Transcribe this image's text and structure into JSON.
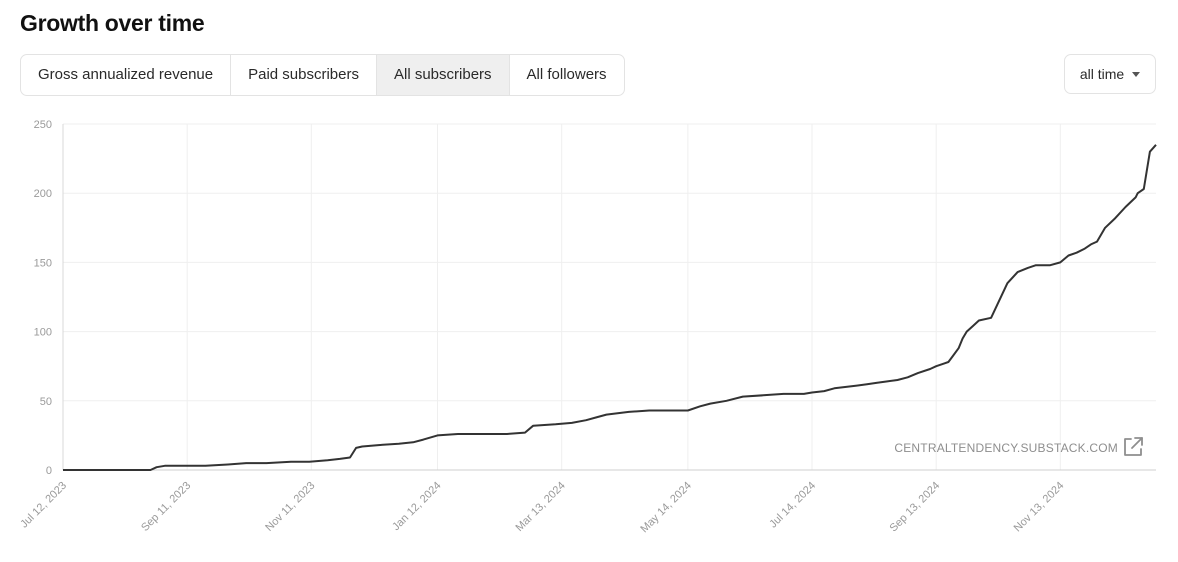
{
  "header": {
    "title": "Growth over time"
  },
  "tabs": [
    {
      "label": "Gross annualized revenue",
      "active": false
    },
    {
      "label": "Paid subscribers",
      "active": false
    },
    {
      "label": "All subscribers",
      "active": true
    },
    {
      "label": "All followers",
      "active": false
    }
  ],
  "range_select": {
    "value": "all time",
    "icon": "caret-down-icon"
  },
  "watermark": {
    "text": "CENTRALTENDENCY.SUBSTACK.COM",
    "icon": "external-link-icon"
  },
  "chart_data": {
    "type": "line",
    "title": "",
    "xlabel": "",
    "ylabel": "",
    "ylim": [
      0,
      250
    ],
    "y_ticks": [
      0,
      50,
      100,
      150,
      200,
      250
    ],
    "x_ticks": [
      "Jul 12, 2023",
      "Sep 11, 2023",
      "Nov 11, 2023",
      "Jan 12, 2024",
      "Mar 13, 2024",
      "May 14, 2024",
      "Jul 14, 2024",
      "Sep 13, 2024",
      "Nov 13, 2024"
    ],
    "grid": true,
    "line_color": "#333333",
    "series": [
      {
        "x": [
          "2023-07-12",
          "2023-08-24",
          "2023-08-27",
          "2023-08-31",
          "2023-09-10",
          "2023-09-20",
          "2023-10-01",
          "2023-10-10",
          "2023-10-20",
          "2023-11-01",
          "2023-11-10",
          "2023-11-19",
          "2023-11-25",
          "2023-11-30",
          "2023-12-03",
          "2023-12-06",
          "2023-12-14",
          "2023-12-24",
          "2023-12-31",
          "2024-01-05",
          "2024-01-12",
          "2024-01-22",
          "2024-02-15",
          "2024-02-24",
          "2024-02-28",
          "2024-03-10",
          "2024-03-18",
          "2024-03-25",
          "2024-03-30",
          "2024-04-04",
          "2024-04-15",
          "2024-04-25",
          "2024-05-05",
          "2024-05-14",
          "2024-05-20",
          "2024-05-25",
          "2024-06-02",
          "2024-06-10",
          "2024-06-20",
          "2024-06-30",
          "2024-07-10",
          "2024-07-14",
          "2024-07-20",
          "2024-07-25",
          "2024-08-05",
          "2024-08-10",
          "2024-08-15",
          "2024-08-20",
          "2024-08-25",
          "2024-08-30",
          "2024-09-04",
          "2024-09-10",
          "2024-09-13",
          "2024-09-17",
          "2024-09-19",
          "2024-09-21",
          "2024-09-24",
          "2024-09-26",
          "2024-09-28",
          "2024-10-01",
          "2024-10-04",
          "2024-10-10",
          "2024-10-18",
          "2024-10-23",
          "2024-10-28",
          "2024-11-01",
          "2024-11-08",
          "2024-11-13",
          "2024-11-17",
          "2024-11-21",
          "2024-11-25",
          "2024-11-28",
          "2024-12-01",
          "2024-12-05",
          "2024-12-10",
          "2024-12-15",
          "2024-12-20",
          "2024-12-21",
          "2024-12-24",
          "2024-12-27",
          "2024-12-30"
        ],
        "y": [
          0,
          0,
          2,
          3,
          3,
          3,
          4,
          5,
          5,
          6,
          6,
          7,
          8,
          9,
          16,
          17,
          18,
          19,
          20,
          22,
          25,
          26,
          26,
          27,
          32,
          33,
          34,
          36,
          38,
          40,
          42,
          43,
          43,
          43,
          46,
          48,
          50,
          53,
          54,
          55,
          55,
          56,
          57,
          59,
          61,
          62,
          63,
          64,
          65,
          67,
          70,
          73,
          75,
          77,
          78,
          82,
          88,
          95,
          100,
          104,
          108,
          110,
          135,
          143,
          146,
          148,
          148,
          150,
          155,
          157,
          160,
          163,
          165,
          175,
          182,
          190,
          197,
          200,
          203,
          230,
          235
        ]
      }
    ]
  }
}
